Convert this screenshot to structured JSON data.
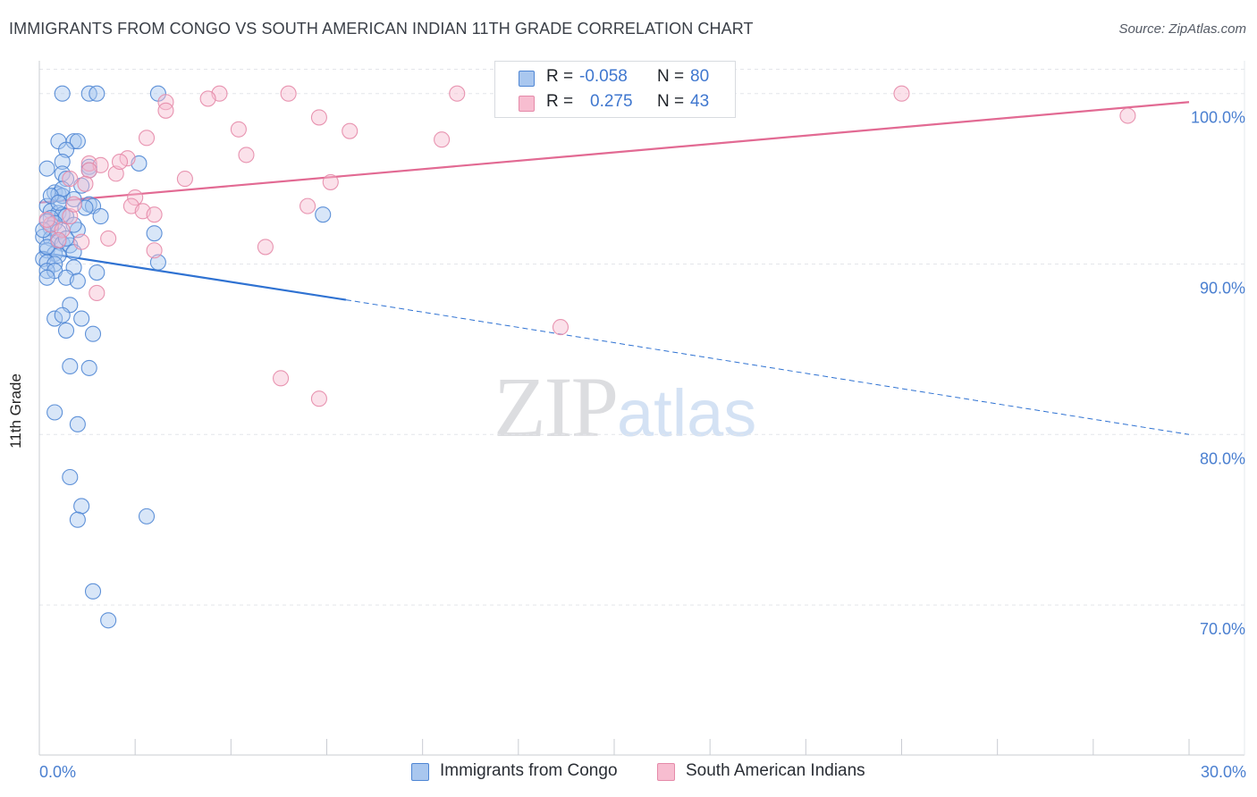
{
  "header": {
    "title": "IMMIGRANTS FROM CONGO VS SOUTH AMERICAN INDIAN 11TH GRADE CORRELATION CHART",
    "source": "Source: ZipAtlas.com"
  },
  "watermark": {
    "zip": "ZIP",
    "atlas": "atlas"
  },
  "stats": {
    "congo": {
      "r_label": "R =",
      "r_value": "-0.058",
      "n_label": "N =",
      "n_value": "80"
    },
    "sai": {
      "r_label": "R =",
      "r_value": "0.275",
      "n_label": "N =",
      "n_value": "43"
    }
  },
  "legend": {
    "congo": "Immigrants from Congo",
    "sai": "South American Indians"
  },
  "colors": {
    "congo_fill": "#a9c7ef",
    "congo_stroke": "#4f86d4",
    "congo_line": "#2f72d2",
    "sai_fill": "#f7bdd0",
    "sai_stroke": "#e58aa9",
    "sai_line": "#e26a93",
    "grid": "#e3e5ea",
    "axis_text": "#4a7fd0"
  },
  "chart_data": {
    "type": "scatter",
    "title": "IMMIGRANTS FROM CONGO VS SOUTH AMERICAN INDIAN 11TH GRADE CORRELATION CHART",
    "xlabel": "",
    "ylabel": "11th Grade",
    "xlim": [
      0,
      30
    ],
    "ylim": [
      61.2,
      101.4
    ],
    "x_tick_labels": [
      "0.0%",
      "30.0%"
    ],
    "y_ticks": [
      70,
      80,
      90,
      100
    ],
    "y_tick_labels": [
      "70.0%",
      "80.0%",
      "90.0%",
      "100.0%"
    ],
    "grid": true,
    "series": [
      {
        "name": "Immigrants from Congo",
        "R": -0.058,
        "N": 80,
        "trend": {
          "x": [
            0,
            8.0
          ],
          "y": [
            90.7,
            87.9
          ],
          "dashed_to": {
            "x": 30,
            "y": 80.0
          }
        },
        "points": [
          [
            0.6,
            100
          ],
          [
            1.3,
            100
          ],
          [
            1.5,
            100
          ],
          [
            3.1,
            100
          ],
          [
            0.5,
            97.2
          ],
          [
            0.9,
            97.2
          ],
          [
            1.0,
            97.2
          ],
          [
            0.7,
            96.7
          ],
          [
            0.6,
            96.0
          ],
          [
            1.3,
            95.7
          ],
          [
            2.6,
            95.9
          ],
          [
            0.2,
            95.6
          ],
          [
            0.6,
            95.3
          ],
          [
            0.7,
            95.0
          ],
          [
            1.3,
            95.5
          ],
          [
            0.4,
            94.2
          ],
          [
            0.5,
            94.1
          ],
          [
            0.6,
            94.0
          ],
          [
            0.9,
            93.8
          ],
          [
            1.3,
            93.5
          ],
          [
            1.4,
            93.4
          ],
          [
            0.2,
            93.4
          ],
          [
            0.3,
            93.1
          ],
          [
            0.5,
            93.0
          ],
          [
            0.6,
            92.9
          ],
          [
            0.7,
            92.8
          ],
          [
            0.3,
            92.7
          ],
          [
            1.6,
            92.8
          ],
          [
            0.2,
            92.5
          ],
          [
            0.4,
            92.4
          ],
          [
            0.3,
            92.1
          ],
          [
            0.5,
            91.9
          ],
          [
            1.0,
            92.0
          ],
          [
            0.1,
            91.6
          ],
          [
            0.3,
            91.5
          ],
          [
            0.5,
            91.3
          ],
          [
            0.6,
            91.2
          ],
          [
            0.8,
            91.1
          ],
          [
            0.2,
            90.8
          ],
          [
            0.4,
            90.6
          ],
          [
            0.5,
            90.5
          ],
          [
            0.9,
            90.7
          ],
          [
            0.1,
            90.3
          ],
          [
            0.2,
            90.1
          ],
          [
            0.4,
            90.0
          ],
          [
            3.1,
            90.1
          ],
          [
            0.2,
            89.6
          ],
          [
            0.4,
            89.6
          ],
          [
            0.9,
            89.8
          ],
          [
            1.5,
            89.5
          ],
          [
            0.2,
            89.2
          ],
          [
            0.7,
            89.2
          ],
          [
            1.0,
            89.0
          ],
          [
            0.8,
            87.6
          ],
          [
            0.4,
            86.8
          ],
          [
            0.6,
            87.0
          ],
          [
            1.1,
            86.8
          ],
          [
            0.7,
            86.1
          ],
          [
            1.4,
            85.9
          ],
          [
            0.8,
            84.0
          ],
          [
            1.3,
            83.9
          ],
          [
            0.4,
            81.3
          ],
          [
            1.0,
            80.6
          ],
          [
            0.8,
            77.5
          ],
          [
            1.1,
            75.8
          ],
          [
            1.0,
            75.0
          ],
          [
            2.8,
            75.2
          ],
          [
            1.4,
            70.8
          ],
          [
            1.8,
            69.1
          ],
          [
            7.4,
            92.9
          ],
          [
            3.0,
            91.8
          ],
          [
            0.6,
            94.4
          ],
          [
            1.1,
            94.6
          ],
          [
            0.3,
            94.0
          ],
          [
            0.9,
            92.3
          ],
          [
            0.1,
            92.0
          ],
          [
            0.2,
            91.0
          ],
          [
            0.5,
            93.6
          ],
          [
            0.7,
            91.5
          ],
          [
            1.2,
            93.3
          ]
        ]
      },
      {
        "name": "South American Indians",
        "R": 0.275,
        "N": 43,
        "trend": {
          "x": [
            0,
            30
          ],
          "y": [
            93.6,
            99.5
          ]
        },
        "points": [
          [
            4.7,
            100
          ],
          [
            6.5,
            100
          ],
          [
            10.9,
            100
          ],
          [
            22.5,
            100
          ],
          [
            4.4,
            99.7
          ],
          [
            3.3,
            99.5
          ],
          [
            3.3,
            99.0
          ],
          [
            7.3,
            98.6
          ],
          [
            5.2,
            97.9
          ],
          [
            8.1,
            97.8
          ],
          [
            2.8,
            97.4
          ],
          [
            10.5,
            97.3
          ],
          [
            5.4,
            96.4
          ],
          [
            2.3,
            96.2
          ],
          [
            1.3,
            95.9
          ],
          [
            1.6,
            95.8
          ],
          [
            1.3,
            95.5
          ],
          [
            2.0,
            95.3
          ],
          [
            3.8,
            95.0
          ],
          [
            7.6,
            94.8
          ],
          [
            0.8,
            95.0
          ],
          [
            2.5,
            93.9
          ],
          [
            2.4,
            93.4
          ],
          [
            7.0,
            93.4
          ],
          [
            2.7,
            93.1
          ],
          [
            3.0,
            92.9
          ],
          [
            0.8,
            92.8
          ],
          [
            0.3,
            92.3
          ],
          [
            0.6,
            92.0
          ],
          [
            1.8,
            91.5
          ],
          [
            1.1,
            91.3
          ],
          [
            0.5,
            91.4
          ],
          [
            5.9,
            91.0
          ],
          [
            3.0,
            90.8
          ],
          [
            1.5,
            88.3
          ],
          [
            13.6,
            86.3
          ],
          [
            6.3,
            83.3
          ],
          [
            7.3,
            82.1
          ],
          [
            28.4,
            98.7
          ],
          [
            1.2,
            94.7
          ],
          [
            0.2,
            92.6
          ],
          [
            0.9,
            93.5
          ],
          [
            2.1,
            96.0
          ]
        ]
      }
    ]
  }
}
